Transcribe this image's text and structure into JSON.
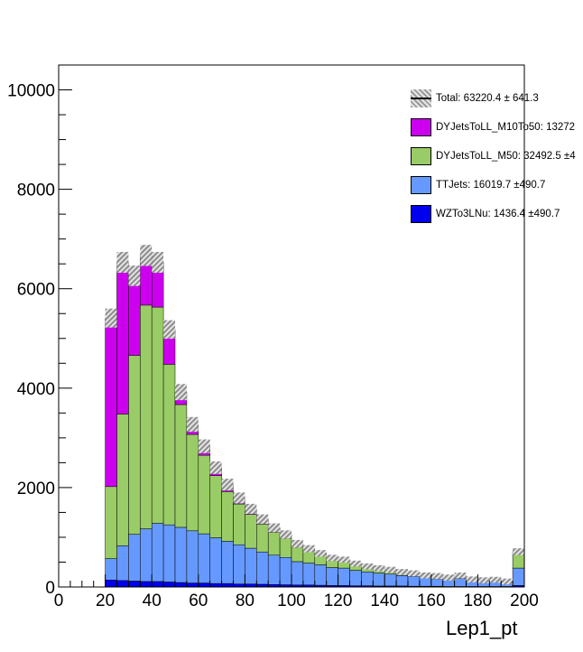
{
  "chart_data": {
    "type": "stacked-histogram",
    "title": "",
    "xlabel": "Lep1_pt",
    "ylabel": "",
    "xlim": [
      0,
      200
    ],
    "ylim": [
      0,
      10500
    ],
    "bin_width": 5,
    "bin_low_edges": [
      20,
      25,
      30,
      35,
      40,
      45,
      50,
      55,
      60,
      65,
      70,
      75,
      80,
      85,
      90,
      95,
      100,
      105,
      110,
      115,
      120,
      125,
      130,
      135,
      140,
      145,
      150,
      155,
      160,
      165,
      170,
      175,
      180,
      185,
      190,
      195
    ],
    "x_ticks": [
      0,
      20,
      40,
      60,
      80,
      100,
      120,
      140,
      160,
      180,
      200
    ],
    "x_tick_labels": [
      "0",
      "20",
      "40",
      "60",
      "80",
      "100",
      "120",
      "140",
      "160",
      "180",
      "200"
    ],
    "y_ticks": [
      0,
      2000,
      4000,
      6000,
      8000,
      10000
    ],
    "y_tick_labels": [
      "0",
      "2000",
      "4000",
      "6000",
      "8000",
      "10000"
    ],
    "grid": false,
    "legend_position": "top-right",
    "series": [
      {
        "name": "WZTo3LNu",
        "legend": "WZTo3LNu: 1436.4 ±490.7",
        "color": "#0000ee",
        "values": [
          140,
          130,
          120,
          110,
          110,
          100,
          90,
          80,
          80,
          70,
          70,
          60,
          60,
          55,
          50,
          45,
          40,
          40,
          35,
          30,
          30,
          25,
          25,
          20,
          20,
          20,
          15,
          15,
          15,
          10,
          10,
          10,
          10,
          10,
          10,
          30
        ]
      },
      {
        "name": "TTJets",
        "legend": "TTJets: 16019.7 ±490.7",
        "color": "#6699ff",
        "values": [
          430,
          700,
          940,
          1060,
          1170,
          1150,
          1110,
          1050,
          990,
          920,
          850,
          790,
          720,
          650,
          590,
          550,
          470,
          440,
          410,
          360,
          350,
          310,
          280,
          260,
          240,
          210,
          200,
          170,
          150,
          140,
          160,
          110,
          100,
          110,
          80,
          350
        ]
      },
      {
        "name": "DYJetsToLL_M50",
        "legend": "DYJetsToLL_M50: 32492.5 ±4",
        "color": "#99cc66",
        "values": [
          1450,
          2650,
          3600,
          4500,
          4350,
          3230,
          2470,
          1940,
          1580,
          1250,
          1000,
          820,
          680,
          560,
          460,
          380,
          290,
          230,
          180,
          150,
          130,
          100,
          80,
          70,
          60,
          50,
          40,
          30,
          35,
          25,
          25,
          20,
          15,
          15,
          10,
          300
        ]
      },
      {
        "name": "DYJetsToLL_M10To50",
        "legend": "DYJetsToLL_M10To50: 13272",
        "color": "#cc00ee",
        "values": [
          3390,
          3050,
          1600,
          1000,
          900,
          700,
          250,
          200,
          180,
          160,
          140,
          120,
          110,
          100,
          90,
          80,
          70,
          60,
          50,
          45,
          40,
          35,
          30,
          28,
          25,
          22,
          20,
          18,
          20,
          15,
          35,
          12,
          10,
          10,
          10,
          30
        ]
      }
    ],
    "total": {
      "legend": "Total: 63220.4 ± 641.3"
    }
  }
}
